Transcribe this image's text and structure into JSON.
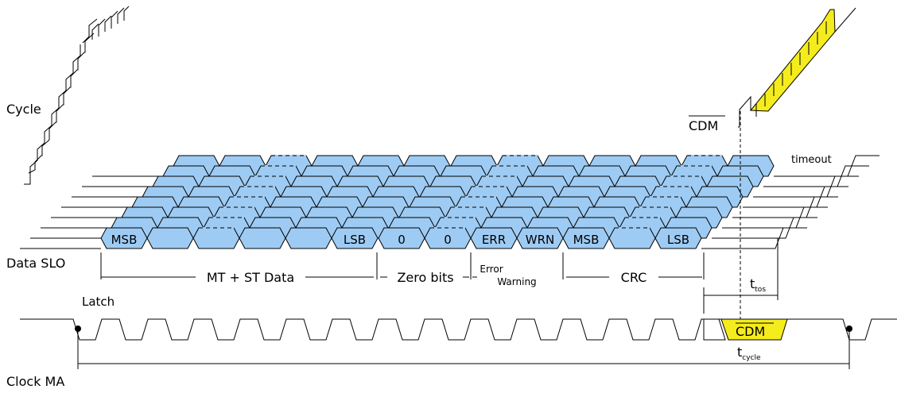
{
  "labels": {
    "cycle": "Cycle",
    "data_slo": "Data SLO",
    "clock_ma": "Clock MA",
    "latch": "Latch",
    "cdm_top": "CDM",
    "cdm_bottom": "CDM",
    "timeout": "timeout"
  },
  "timing": {
    "t_tos_main": "t",
    "t_tos_sub": "tos",
    "t_cycle_main": "t",
    "t_cycle_sub": "cycle"
  },
  "cells": [
    "MSB",
    "",
    "",
    "",
    "",
    "LSB",
    "0",
    "0",
    "ERR",
    "WRN",
    "MSB",
    "",
    "LSB"
  ],
  "groups": [
    {
      "label": "MT + ST Data"
    },
    {
      "label": "Zero bits"
    },
    {
      "label_top": "Error",
      "label_bottom": "Warning"
    },
    {
      "label": "CRC"
    }
  ],
  "colors": {
    "cell_fill": "#9ecbf3",
    "cdm_fill": "#f5ec1d",
    "line": "#000000"
  },
  "icons": {
    "latch_marker": "filled-dot"
  }
}
